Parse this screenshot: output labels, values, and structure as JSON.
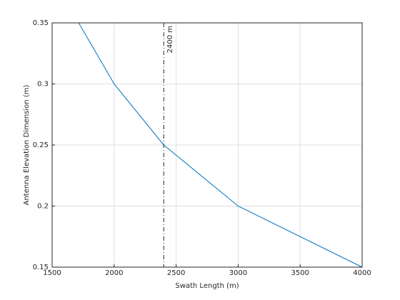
{
  "chart_data": {
    "type": "line",
    "x_label": "Swath Length (m)",
    "y_label": "Antenna Elevation Dimension (m)",
    "series": [
      {
        "color": "#0072bd",
        "x": [
          1714,
          2000,
          2400,
          3000,
          4000
        ],
        "values": [
          0.35,
          0.3,
          0.25,
          0.2,
          0.15
        ]
      }
    ],
    "xlim": [
      1500,
      4000
    ],
    "xticks": [
      1500,
      2000,
      2500,
      3000,
      3500,
      4000
    ],
    "ylim": [
      0.15,
      0.35
    ],
    "yticks": [
      0.15,
      0.2,
      0.25,
      0.3,
      0.35
    ],
    "grid": true,
    "annotations": [
      {
        "x": 2400,
        "label": "2400 m"
      }
    ]
  }
}
